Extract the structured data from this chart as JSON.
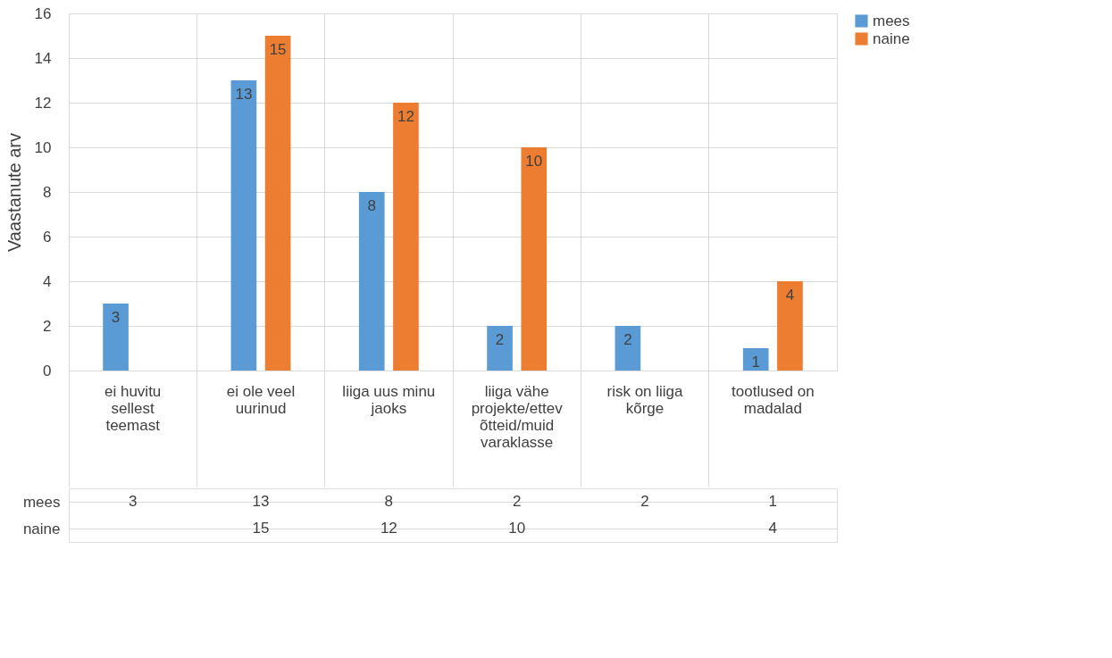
{
  "chart_data": {
    "type": "bar",
    "ylabel": "Vaastanute arv",
    "categories": [
      "ei huvitu sellest teemast",
      "ei ole veel uurinud",
      "liiga uus minu jaoks",
      "liiga vähe projekte/ettevõtteid/muid varaklasse",
      "risk on liiga kõrge",
      "tootlused on madalad"
    ],
    "series": [
      {
        "name": "mees",
        "color": "#5b9bd5",
        "values": [
          3,
          13,
          8,
          2,
          2,
          1
        ],
        "value_labels": [
          "3",
          "13",
          "8",
          "2",
          "2",
          "1"
        ]
      },
      {
        "name": "naine",
        "color": "#ed7d31",
        "values": [
          null,
          15,
          12,
          10,
          null,
          4
        ],
        "value_labels": [
          null,
          "15",
          "12",
          "10",
          null,
          "4"
        ]
      }
    ],
    "ylim": [
      0,
      16
    ],
    "yticks": [
      0,
      2,
      4,
      6,
      8,
      10,
      12,
      14,
      16
    ],
    "grid": "y",
    "legend": "right",
    "data_labels": true
  }
}
